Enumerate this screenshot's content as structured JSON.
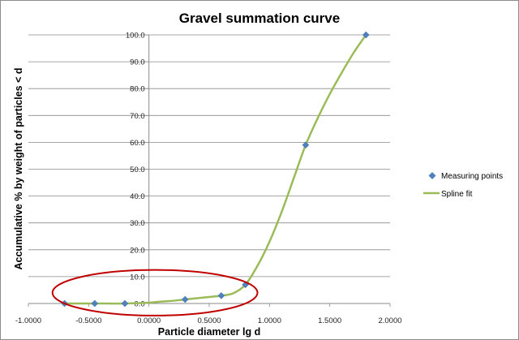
{
  "chart_data": {
    "type": "scatter",
    "title": "Gravel summation curve",
    "xlabel": "Particle diameter lg d",
    "ylabel": "Accumulative % by weight of particles < d",
    "xlim": [
      -1.0,
      2.0
    ],
    "ylim": [
      0,
      100
    ],
    "x_ticks": [
      "-1.0000",
      "-0.5000",
      "0.0000",
      "0.5000",
      "1.0000",
      "1.5000",
      "2.0000"
    ],
    "y_ticks": [
      "0.0",
      "10.0",
      "20.0",
      "30.0",
      "40.0",
      "50.0",
      "60.0",
      "70.0",
      "80.0",
      "90.0",
      "100.0"
    ],
    "grid": "horizontal",
    "legend_position": "right",
    "series": [
      {
        "name": "Measuring points",
        "kind": "markers",
        "color": "#4f81bd",
        "x": [
          -0.7,
          -0.45,
          -0.2,
          0.3,
          0.6,
          0.8,
          1.3,
          1.8
        ],
        "y": [
          0.0,
          0.0,
          0.0,
          1.5,
          2.9,
          7.0,
          59.0,
          100.0
        ]
      },
      {
        "name": "Spline fit",
        "kind": "line",
        "color": "#9bbb59",
        "x": [
          -0.7,
          -0.45,
          -0.2,
          0.0,
          0.1,
          0.2,
          0.3,
          0.45,
          0.6,
          0.7,
          0.8,
          0.9,
          1.0,
          1.1,
          1.2,
          1.3,
          1.4,
          1.5,
          1.6,
          1.7,
          1.8
        ],
        "y": [
          0.0,
          0.0,
          0.0,
          0.3,
          0.7,
          1.0,
          1.5,
          2.2,
          2.9,
          3.8,
          7.0,
          14.0,
          23.0,
          34.0,
          46.5,
          59.0,
          69.0,
          78.0,
          86.0,
          93.5,
          100.0
        ]
      }
    ],
    "annotation": {
      "shape": "ellipse",
      "color": "#c00000",
      "center": [
        0.05,
        4.0
      ],
      "radius_x": 0.85,
      "radius_y": 8.5
    }
  }
}
